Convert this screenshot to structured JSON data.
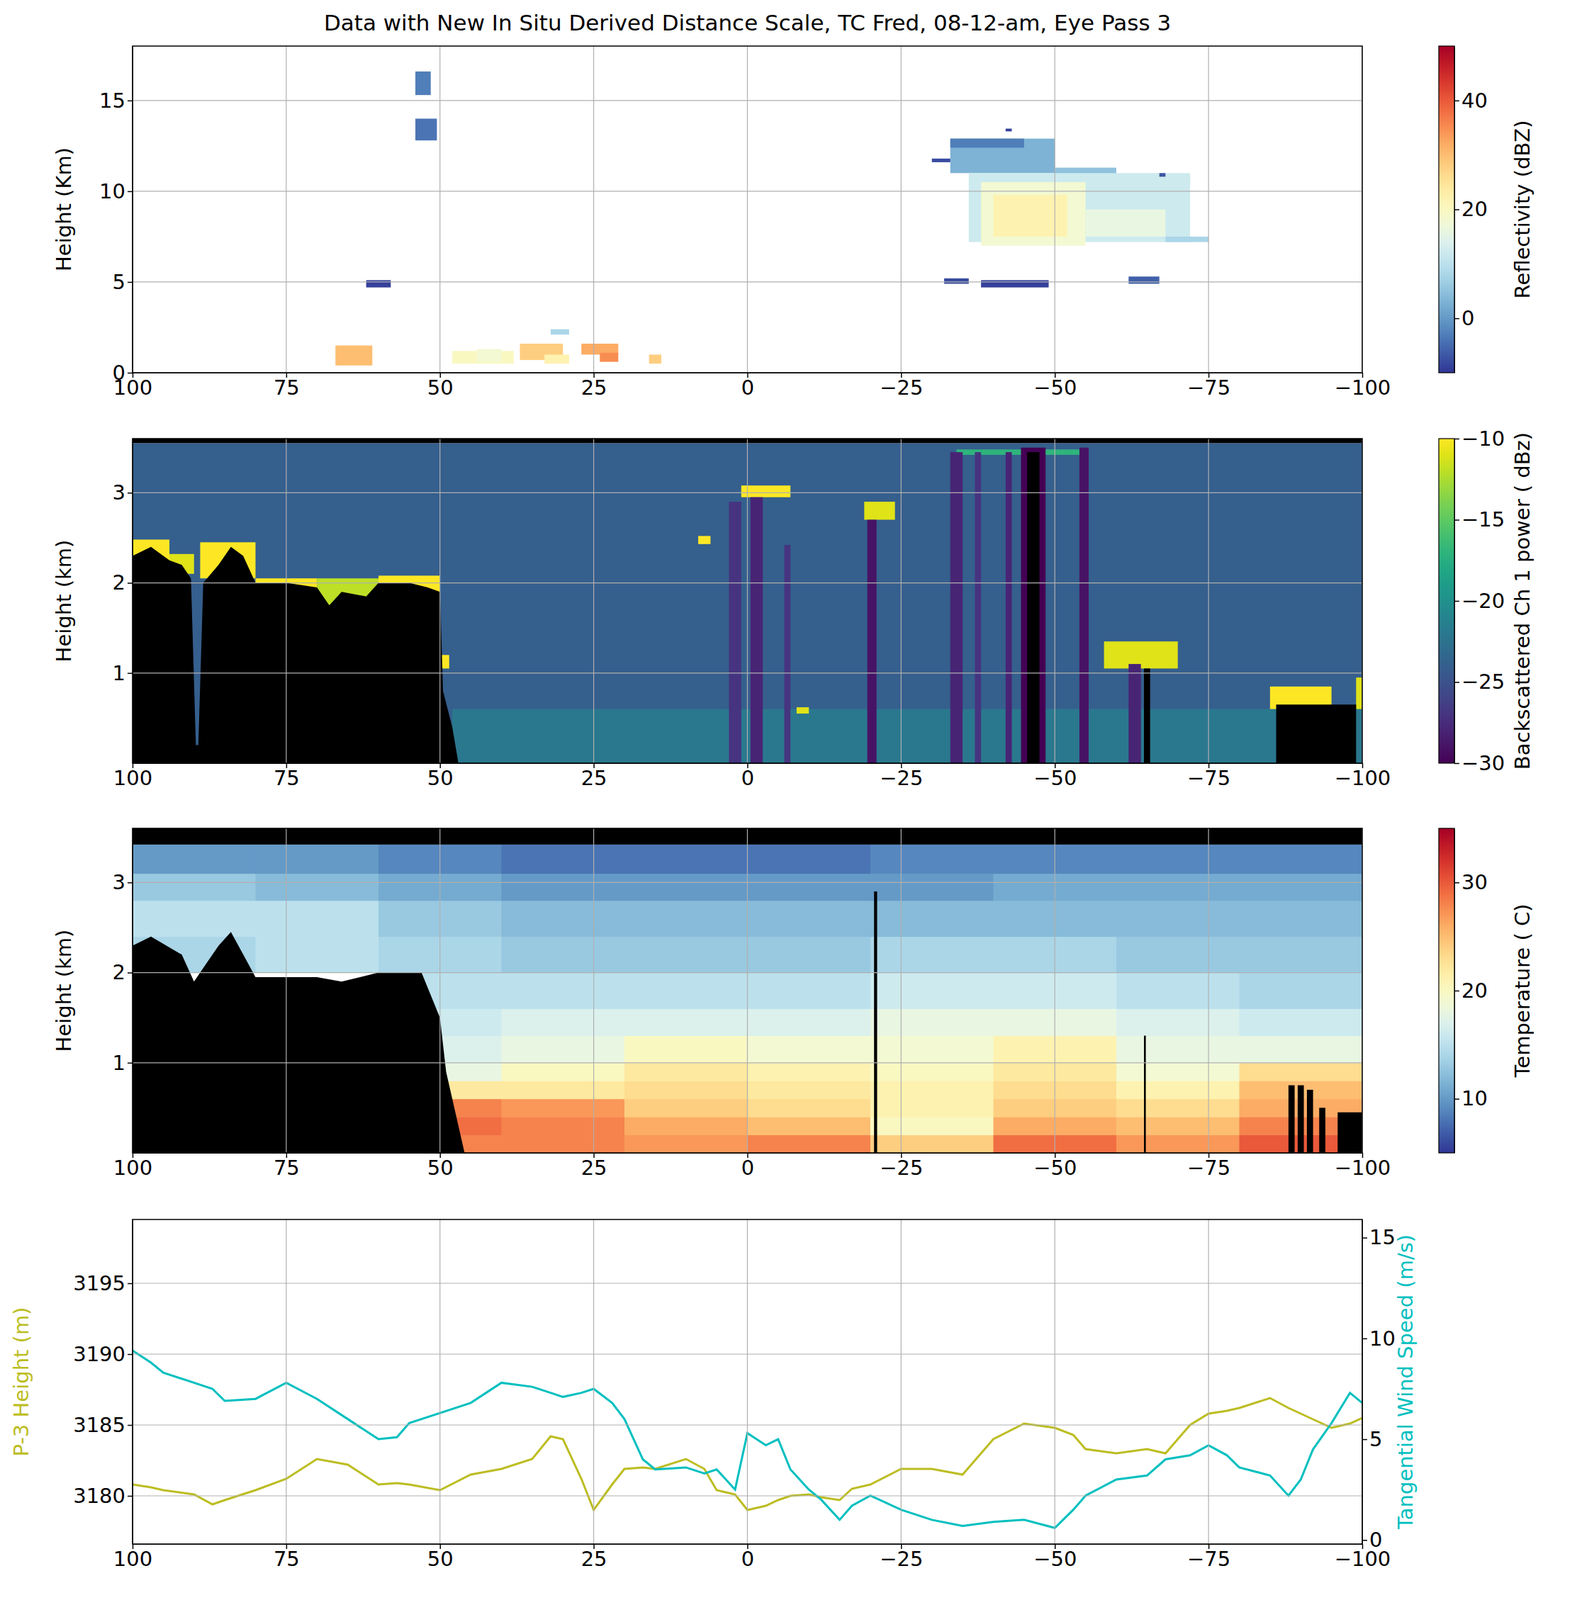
{
  "chart_data": [
    {
      "type": "heatmap",
      "title": "Data with New In Situ Derived Distance Scale, TC Fred, 08-12-am, Eye Pass 3",
      "color": "RdYlBu_r",
      "xlim": [
        100,
        -100
      ],
      "xticks": [
        100,
        75,
        50,
        25,
        0,
        {
          "value": -25,
          "label": "−25"
        },
        {
          "value": -50,
          "label": "−50"
        },
        {
          "value": -75,
          "label": "−75"
        },
        {
          "value": -100,
          "label": "−100"
        }
      ],
      "ylim": [
        0,
        18
      ],
      "yticks": [
        0,
        5,
        10,
        15
      ],
      "y_label": "Height (Km)",
      "grid": true,
      "colorbar": {
        "label": "Reflectivity (dBZ)",
        "lim": [
          -10,
          50
        ],
        "ticks": [
          0,
          20,
          40
        ]
      },
      "cells": [
        [
          54,
          51.5,
          15.3,
          16.6,
          -3
        ],
        [
          54,
          50.5,
          12.8,
          14.0,
          -4
        ],
        [
          62,
          58,
          4.7,
          5.1,
          -9
        ],
        [
          67,
          61,
          0.4,
          1.5,
          30
        ],
        [
          48,
          38,
          0.5,
          1.2,
          20
        ],
        [
          44,
          40,
          0.6,
          1.3,
          18
        ],
        [
          37,
          30,
          0.7,
          1.6,
          28
        ],
        [
          33,
          29,
          0.5,
          1.0,
          22
        ],
        [
          32,
          29,
          2.1,
          2.4,
          8
        ],
        [
          27,
          21,
          1.0,
          1.6,
          32
        ],
        [
          24,
          21,
          0.6,
          1.1,
          35
        ],
        [
          16,
          14,
          0.5,
          1.0,
          28
        ],
        [
          -33,
          -50,
          11,
          12.9,
          3
        ],
        [
          -33,
          -45,
          12.4,
          12.9,
          -3
        ],
        [
          -50,
          -60,
          10.3,
          11.3,
          5
        ],
        [
          -60,
          -72,
          10.3,
          10.8,
          8
        ],
        [
          -36,
          -72,
          7.2,
          11,
          12
        ],
        [
          -38,
          -55,
          7.0,
          10.5,
          18
        ],
        [
          -40,
          -52,
          7.5,
          9.8,
          22
        ],
        [
          -55,
          -68,
          7.5,
          9,
          16
        ],
        [
          -68,
          -75,
          7.2,
          7.5,
          8
        ],
        [
          -32,
          -36,
          4.9,
          5.2,
          -8
        ],
        [
          -38,
          -49,
          4.7,
          5.1,
          -9
        ],
        [
          -62,
          -67,
          4.9,
          5.3,
          -6
        ],
        [
          -30,
          -33,
          11.6,
          11.8,
          -8
        ],
        [
          -42,
          -43,
          13.3,
          13.45,
          -9
        ],
        [
          -67,
          -68,
          10.8,
          11,
          -7
        ]
      ]
    },
    {
      "type": "heatmap",
      "color": "viridis",
      "xlim": [
        100,
        -100
      ],
      "xticks": [
        100,
        75,
        50,
        25,
        0,
        {
          "value": -25,
          "label": "−25"
        },
        {
          "value": -50,
          "label": "−50"
        },
        {
          "value": -75,
          "label": "−75"
        },
        {
          "value": -100,
          "label": "−100"
        }
      ],
      "ylim": [
        0,
        3.6
      ],
      "yticks": [
        1,
        2,
        3
      ],
      "y_label": "Height (km)",
      "grid": true,
      "colorbar": {
        "label": "Backscattered Ch 1 power ( dBz)",
        "lim": [
          -30,
          -10
        ],
        "ticks": [
          {
            "value": -10,
            "label": "−10"
          },
          {
            "value": -15,
            "label": "−15"
          },
          {
            "value": -20,
            "label": "−20"
          },
          {
            "value": -25,
            "label": "−25"
          },
          {
            "value": -30,
            "label": "−30"
          }
        ]
      },
      "cells": [
        [
          100,
          -100,
          0,
          3.55,
          -24
        ],
        [
          48,
          -100,
          0,
          0.6,
          -22
        ],
        [
          100,
          94,
          2.2,
          2.48,
          -10
        ],
        [
          94,
          90,
          2.1,
          2.32,
          -11
        ],
        [
          89,
          80,
          2.05,
          2.45,
          -10
        ],
        [
          80,
          70,
          1.9,
          2.05,
          -10
        ],
        [
          70,
          60,
          1.75,
          2.05,
          -12
        ],
        [
          60,
          50,
          1.9,
          2.08,
          -10
        ],
        [
          52,
          48.5,
          1.05,
          1.2,
          -10
        ],
        [
          8,
          6,
          2.43,
          2.52,
          -10
        ],
        [
          1,
          -7,
          2.95,
          3.08,
          -10
        ],
        [
          -19,
          -24,
          2.7,
          2.9,
          -11
        ],
        [
          -8,
          -10,
          0.55,
          0.62,
          -11
        ],
        [
          -58,
          -70,
          1.05,
          1.35,
          -11
        ],
        [
          -85,
          -95,
          0.6,
          0.85,
          -10
        ],
        [
          -99,
          -100,
          0.6,
          0.95,
          -11
        ],
        [
          -34,
          -55,
          3.42,
          3.48,
          -17
        ],
        [
          -0.5,
          -2.5,
          0,
          2.95,
          -28
        ],
        [
          3,
          1,
          0,
          2.9,
          -27
        ],
        [
          -19.5,
          -21,
          0,
          2.7,
          -29
        ],
        [
          -6,
          -7,
          0,
          2.42,
          -27
        ],
        [
          -33,
          -35,
          0,
          3.45,
          -28
        ],
        [
          -37,
          -38,
          0,
          3.45,
          -27
        ],
        [
          -42,
          -43,
          0,
          3.45,
          -28
        ],
        [
          -44.5,
          -48.5,
          0,
          3.5,
          -30
        ],
        [
          -54,
          -55.5,
          0,
          3.5,
          -29
        ],
        [
          -62,
          -64,
          0,
          1.1,
          -28
        ]
      ],
      "surface": {
        "x": [
          100,
          97,
          94,
          92,
          90.5,
          89.7,
          89.3,
          88.5,
          86,
          84,
          82,
          80,
          75,
          70,
          68,
          66,
          62,
          60,
          55,
          52,
          50,
          49.5,
          48,
          47
        ],
        "y": [
          2.3,
          2.4,
          2.25,
          2.2,
          2.05,
          0.2,
          0.2,
          2.0,
          2.2,
          2.4,
          2.3,
          2.0,
          2.0,
          1.95,
          1.75,
          1.9,
          1.85,
          2.0,
          2.0,
          1.95,
          1.9,
          0.8,
          0.4,
          0
        ]
      },
      "no_data": [
        [
          100,
          -100,
          3.55,
          3.6
        ],
        [
          -45.5,
          -47.5,
          0,
          3.45
        ],
        [
          -64.5,
          -65.5,
          0,
          1.05
        ],
        [
          -86,
          -99,
          0,
          0.65
        ]
      ]
    },
    {
      "type": "heatmap",
      "color": "RdYlBu_r",
      "xlim": [
        100,
        -100
      ],
      "xticks": [
        100,
        75,
        50,
        25,
        0,
        {
          "value": -25,
          "label": "−25"
        },
        {
          "value": -50,
          "label": "−50"
        },
        {
          "value": -75,
          "label": "−75"
        },
        {
          "value": -100,
          "label": "−100"
        }
      ],
      "ylim": [
        0,
        3.6
      ],
      "yticks": [
        1,
        2,
        3
      ],
      "y_label": "Height (km)",
      "grid": true,
      "colorbar": {
        "label": "Temperature ( C)",
        "lim": [
          5,
          35
        ],
        "ticks": [
          10,
          20,
          30
        ]
      },
      "x_edges": [
        100,
        80,
        60,
        40,
        20,
        0,
        -20,
        -40,
        -60,
        -80,
        -100
      ],
      "y_edges": [
        0,
        0.2,
        0.4,
        0.6,
        0.8,
        1.0,
        1.3,
        1.6,
        2.0,
        2.4,
        2.8,
        3.1,
        3.42
      ],
      "values": [
        [
          null,
          null,
          28,
          28,
          27,
          28,
          24,
          29,
          27,
          30
        ],
        [
          null,
          null,
          29,
          28,
          26,
          25,
          20,
          26,
          25,
          28
        ],
        [
          null,
          null,
          28,
          27,
          24,
          23,
          21,
          24,
          23,
          26
        ],
        [
          null,
          null,
          22,
          22,
          23,
          22,
          21,
          23,
          21,
          25
        ],
        [
          null,
          null,
          18,
          20,
          22,
          21,
          20,
          22,
          19,
          23
        ],
        [
          null,
          null,
          17,
          18,
          20,
          19,
          19,
          21,
          18,
          18
        ],
        [
          null,
          null,
          16,
          17,
          17,
          17,
          18,
          18,
          17,
          16
        ],
        [
          null,
          null,
          15,
          15,
          15,
          15,
          16,
          16,
          15,
          14
        ],
        [
          14,
          15,
          14,
          13,
          13,
          13,
          14,
          14,
          13,
          13
        ],
        [
          15,
          15,
          13,
          12,
          12,
          12,
          12,
          12,
          12,
          12
        ],
        [
          13,
          12,
          11,
          10,
          10,
          10,
          10,
          11,
          11,
          11
        ],
        [
          10,
          10,
          9,
          8,
          8,
          8,
          9,
          9,
          9,
          9
        ]
      ],
      "surface": {
        "x": [
          100,
          97,
          92,
          90,
          88,
          86,
          84,
          82,
          80,
          70,
          66,
          60,
          53,
          50,
          49,
          47,
          46
        ],
        "y": [
          2.3,
          2.4,
          2.2,
          1.9,
          2.1,
          2.3,
          2.45,
          2.2,
          1.95,
          1.95,
          1.9,
          2.0,
          2.0,
          1.5,
          0.9,
          0.3,
          0
        ]
      },
      "no_data": [
        [
          100,
          -100,
          3.42,
          3.6
        ],
        [
          -20.6,
          -21.1,
          0,
          2.9
        ],
        [
          -64.5,
          -64.8,
          0,
          1.3
        ],
        [
          -88,
          -89,
          0,
          0.75
        ],
        [
          -89.5,
          -90.5,
          0,
          0.75
        ],
        [
          -91,
          -92,
          0,
          0.7
        ],
        [
          -93,
          -94,
          0,
          0.5
        ],
        [
          -96,
          -100,
          0,
          0.45
        ]
      ]
    },
    {
      "type": "line",
      "xlim": [
        100,
        -100
      ],
      "xticks": [
        100,
        75,
        50,
        25,
        0,
        {
          "value": -25,
          "label": "−25"
        },
        {
          "value": -50,
          "label": "−50"
        },
        {
          "value": -75,
          "label": "−75"
        },
        {
          "value": -100,
          "label": "−100"
        }
      ],
      "ylim": [
        3176.6,
        3199.5
      ],
      "yticks": [
        3180,
        3185,
        3190,
        3195
      ],
      "y2lim": [
        -0.2,
        15.9
      ],
      "y2ticks": [
        0,
        5,
        10,
        15
      ],
      "y_label": "P-3 Height (m)",
      "y2_label": "Tangential Wind Speed (m/s)",
      "grid": true,
      "x": [
        100,
        97,
        95,
        90,
        87,
        85,
        80,
        75,
        70,
        65,
        60,
        57,
        55,
        50,
        45,
        40,
        35,
        32,
        30,
        27,
        25,
        22,
        20,
        17,
        15,
        10,
        7,
        5,
        2,
        0,
        -3,
        -5,
        -7,
        -10,
        -12,
        -15,
        -17,
        -20,
        -25,
        -30,
        -35,
        -40,
        -45,
        -50,
        -53,
        -55,
        -60,
        -65,
        -68,
        -72,
        -75,
        -78,
        -80,
        -85,
        -88,
        -90,
        -92,
        -95,
        -98,
        -100
      ],
      "series": [
        {
          "color": "#bcbd22",
          "values": [
            3180.8,
            3180.6,
            3180.4,
            3180.1,
            3179.4,
            3179.7,
            3180.4,
            3181.2,
            3182.6,
            3182.2,
            3180.8,
            3180.9,
            3180.8,
            3180.4,
            3181.5,
            3181.9,
            3182.6,
            3184.2,
            3184.0,
            3181.2,
            3179.0,
            3180.8,
            3181.9,
            3182.0,
            3181.9,
            3182.6,
            3181.9,
            3180.4,
            3180.1,
            3179.0,
            3179.3,
            3179.7,
            3180.0,
            3180.1,
            3179.9,
            3179.7,
            3180.5,
            3180.8,
            3181.9,
            3181.9,
            3181.5,
            3184.0,
            3185.1,
            3184.8,
            3184.3,
            3183.3,
            3183.0,
            3183.3,
            3183.0,
            3185.0,
            3185.8,
            3186.0,
            3186.2,
            3186.9,
            3186.2,
            3185.8,
            3185.4,
            3184.8,
            3185.1,
            3185.5
          ]
        },
        {
          "color": "#00bfbf",
          "axis": "y2",
          "values": [
            9.4,
            8.8,
            8.3,
            7.8,
            7.5,
            6.9,
            7.0,
            7.8,
            7.0,
            6.0,
            5.0,
            5.1,
            5.8,
            6.3,
            6.8,
            7.8,
            7.6,
            7.3,
            7.1,
            7.3,
            7.5,
            6.8,
            6.0,
            4.0,
            3.5,
            3.6,
            3.3,
            3.5,
            2.5,
            5.3,
            4.7,
            5.0,
            3.5,
            2.5,
            2.0,
            1.0,
            1.7,
            2.2,
            1.5,
            1.0,
            0.7,
            0.9,
            1.0,
            0.6,
            1.5,
            2.2,
            3.0,
            3.2,
            4.0,
            4.2,
            4.7,
            4.2,
            3.6,
            3.2,
            2.2,
            3.0,
            4.5,
            5.8,
            7.3,
            6.8
          ]
        }
      ]
    }
  ]
}
